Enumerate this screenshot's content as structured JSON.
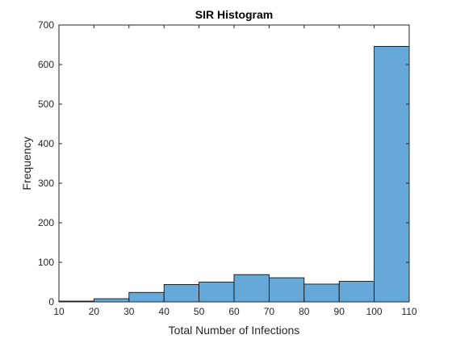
{
  "chart_data": {
    "type": "bar",
    "title": "SIR Histogram",
    "xlabel": "Total Number of Infections",
    "ylabel": "Frequency",
    "bin_edges": [
      10,
      20,
      30,
      40,
      50,
      60,
      70,
      80,
      90,
      100,
      110
    ],
    "values": [
      2,
      8,
      24,
      44,
      50,
      69,
      61,
      45,
      52,
      646
    ],
    "xlim": [
      10,
      110
    ],
    "ylim": [
      0,
      700
    ],
    "xticks": [
      "10",
      "20",
      "30",
      "40",
      "50",
      "60",
      "70",
      "80",
      "90",
      "100",
      "110"
    ],
    "yticks": [
      "0",
      "100",
      "200",
      "300",
      "400",
      "500",
      "600",
      "700"
    ],
    "grid": false,
    "bar_color": "#66a9d9",
    "edge_color": "#000000"
  }
}
